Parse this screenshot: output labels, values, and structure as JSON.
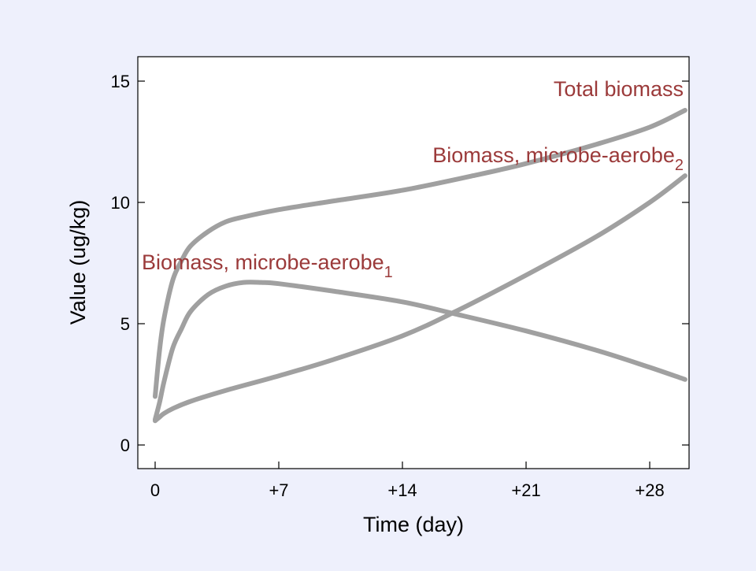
{
  "colors": {
    "background": "#eef0fc",
    "plot_background": "#ffffff",
    "series_line": "#a0a0a0",
    "label_text": "#9b3a3a",
    "axis": "#000000"
  },
  "chart_data": {
    "type": "line",
    "xlabel": "Time (day)",
    "ylabel": "Value (ug/kg)",
    "xlim": [
      -1,
      30
    ],
    "ylim": [
      -1,
      16
    ],
    "x_ticks": [
      0,
      7,
      14,
      21,
      28
    ],
    "x_tick_labels": [
      "0",
      "+7",
      "+14",
      "+21",
      "+28"
    ],
    "y_ticks": [
      0,
      5,
      10,
      15
    ],
    "y_tick_labels": [
      "0",
      "5",
      "10",
      "15"
    ],
    "grid": false,
    "legend": "none",
    "series": [
      {
        "name": "Total biomass",
        "label_text": "Total biomass",
        "label_subscript": "",
        "x": [
          0,
          0.25,
          0.5,
          1,
          1.5,
          2,
          3,
          4,
          5,
          7,
          10,
          14,
          18,
          21,
          25,
          28,
          30
        ],
        "y": [
          2.0,
          3.9,
          5.2,
          6.8,
          7.6,
          8.2,
          8.8,
          9.2,
          9.4,
          9.7,
          10.05,
          10.5,
          11.1,
          11.6,
          12.4,
          13.1,
          13.8
        ]
      },
      {
        "name": "Biomass, microbe-aerobe2",
        "label_text": "Biomass, microbe-aerobe",
        "label_subscript": "2",
        "x": [
          0,
          0.25,
          0.5,
          1,
          2,
          4,
          7,
          10,
          14,
          17,
          21,
          25,
          28,
          30
        ],
        "y": [
          1.0,
          1.15,
          1.3,
          1.5,
          1.8,
          2.25,
          2.85,
          3.5,
          4.5,
          5.5,
          7.0,
          8.6,
          10.0,
          11.1
        ]
      },
      {
        "name": "Biomass, microbe-aerobe1",
        "label_text": "Biomass, microbe-aerobe",
        "label_subscript": "1",
        "x": [
          0,
          0.25,
          0.5,
          1,
          1.5,
          2,
          3,
          4,
          5,
          6,
          7,
          10,
          14,
          17,
          21,
          25,
          28,
          30
        ],
        "y": [
          1.05,
          1.75,
          2.6,
          4.0,
          4.8,
          5.5,
          6.2,
          6.55,
          6.7,
          6.7,
          6.65,
          6.35,
          5.9,
          5.4,
          4.7,
          3.9,
          3.2,
          2.7
        ]
      }
    ]
  }
}
